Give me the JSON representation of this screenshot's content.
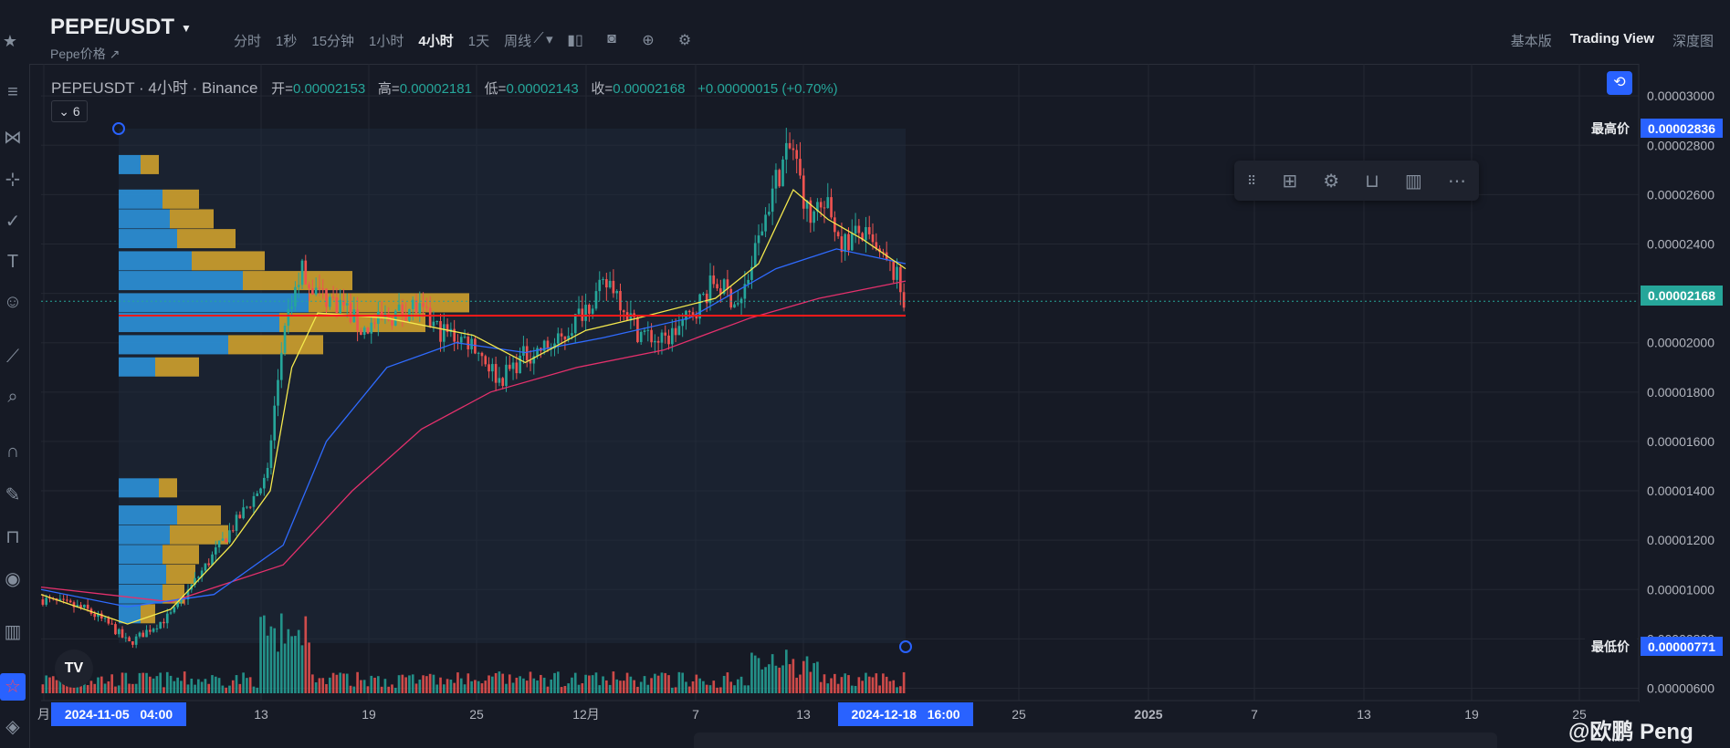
{
  "header": {
    "symbol": "PEPE/USDT",
    "sublink": "Pepe价格 ↗",
    "intervals": [
      "分时",
      "1秒",
      "15分钟",
      "1小时",
      "4小时",
      "1天",
      "周线"
    ],
    "active_interval": "4小时",
    "views": [
      "基本版",
      "Trading View",
      "深度图"
    ],
    "active_view": "Trading View"
  },
  "legend": {
    "name": "PEPEUSDT · 4小时 · Binance",
    "open_label": "开=",
    "open": "0.00002153",
    "high_label": "高=",
    "high": "0.00002181",
    "low_label": "低=",
    "low": "0.00002143",
    "close_label": "收=",
    "close": "0.00002168",
    "change": "+0.00000015 (+0.70%)",
    "indicator_toggle": "6"
  },
  "colors": {
    "background": "#161a25",
    "up": "#26a69a",
    "down": "#ef5350",
    "ma_short": "#f5e94d",
    "ma_mid": "#2f6bff",
    "ma_long": "#e4306c",
    "hline": "#ff1a1a",
    "vp_buy": "#2b8fd6",
    "vp_sell": "#d4a42c",
    "accent": "#2962ff"
  },
  "icons": {
    "top_tools": [
      "line-chart-icon",
      "candles-icon",
      "camera-icon",
      "plus-circle-icon",
      "gear-icon"
    ],
    "left_tools": [
      "menu-icon",
      "nodes-icon",
      "crosshair-icon",
      "brush-icon",
      "text-icon",
      "emoji-icon",
      "ruler-icon",
      "zoom-icon",
      "magnet-icon",
      "pen-lock-icon",
      "lock-icon",
      "eye-icon",
      "trash-icon",
      "star-icon",
      "layers-icon"
    ],
    "draw_toolbar": [
      "drag-handle-icon",
      "add-widget-icon",
      "gear-icon",
      "unlock-icon",
      "trash-icon",
      "more-icon"
    ]
  },
  "chart_data": {
    "type": "candlestick",
    "title": "PEPEUSDT · 4小时 · Binance",
    "y_axis": {
      "ticks": [
        "0.00003000",
        "0.00002800",
        "0.00002600",
        "0.00002400",
        "0.00002200",
        "0.00002000",
        "0.00001800",
        "0.00001600",
        "0.00001400",
        "0.00001200",
        "0.00001000",
        "0.00000800",
        "0.00000600"
      ],
      "ylim": [
        5.5e-06,
        3.13e-05
      ]
    },
    "x_axis": {
      "ticks": [
        "月",
        "13",
        "19",
        "25",
        "12月",
        "7",
        "13",
        "25",
        "2025",
        "7",
        "13",
        "19",
        "25"
      ],
      "crosshair_start": "2024-11-05   04:00",
      "crosshair_end": "2024-12-18   16:00"
    },
    "price_labels": {
      "high_label": "最高价",
      "high": "0.00002836",
      "low_label": "最低价",
      "low": "0.00000771",
      "last": "0.00002168"
    },
    "horizontal_line": 2.11e-05,
    "price_path": [
      [
        0,
        9.6e-06
      ],
      [
        0.05,
        9.2e-06
      ],
      [
        0.08,
        8.5e-06
      ],
      [
        0.1,
        7.8e-06
      ],
      [
        0.12,
        8.3e-06
      ],
      [
        0.15,
        9e-06
      ],
      [
        0.18,
        1.05e-05
      ],
      [
        0.21,
        1.2e-05
      ],
      [
        0.24,
        1.35e-05
      ],
      [
        0.26,
        1.45e-05
      ],
      [
        0.278,
        2e-05
      ],
      [
        0.3,
        2.3e-05
      ],
      [
        0.32,
        2.2e-05
      ],
      [
        0.35,
        2.15e-05
      ],
      [
        0.37,
        2.05e-05
      ],
      [
        0.4,
        2.1e-05
      ],
      [
        0.43,
        2.15e-05
      ],
      [
        0.46,
        2.05e-05
      ],
      [
        0.5,
        2e-05
      ],
      [
        0.53,
        1.85e-05
      ],
      [
        0.56,
        1.95e-05
      ],
      [
        0.6,
        2e-05
      ],
      [
        0.63,
        2.15e-05
      ],
      [
        0.66,
        2.25e-05
      ],
      [
        0.69,
        2.05e-05
      ],
      [
        0.72,
        2e-05
      ],
      [
        0.75,
        2.1e-05
      ],
      [
        0.78,
        2.25e-05
      ],
      [
        0.81,
        2.15e-05
      ],
      [
        0.83,
        2.4e-05
      ],
      [
        0.85,
        2.65e-05
      ],
      [
        0.87,
        2.8e-05
      ],
      [
        0.89,
        2.5e-05
      ],
      [
        0.91,
        2.55e-05
      ],
      [
        0.93,
        2.4e-05
      ],
      [
        0.95,
        2.45e-05
      ],
      [
        0.97,
        2.35e-05
      ],
      [
        0.99,
        2.28e-05
      ],
      [
        1.0,
        2.168e-05
      ]
    ],
    "ma_short": [
      [
        0,
        9.8e-06
      ],
      [
        0.1,
        8.6e-06
      ],
      [
        0.15,
        9.2e-06
      ],
      [
        0.22,
        1.18e-05
      ],
      [
        0.265,
        1.4e-05
      ],
      [
        0.29,
        1.9e-05
      ],
      [
        0.32,
        2.12e-05
      ],
      [
        0.4,
        2.1e-05
      ],
      [
        0.5,
        2.03e-05
      ],
      [
        0.56,
        1.92e-05
      ],
      [
        0.63,
        2.05e-05
      ],
      [
        0.69,
        2.1e-05
      ],
      [
        0.78,
        2.18e-05
      ],
      [
        0.83,
        2.32e-05
      ],
      [
        0.87,
        2.62e-05
      ],
      [
        0.91,
        2.5e-05
      ],
      [
        0.95,
        2.42e-05
      ],
      [
        1.0,
        2.3e-05
      ]
    ],
    "ma_mid": [
      [
        0,
        1e-05
      ],
      [
        0.1,
        9.3e-06
      ],
      [
        0.2,
        9.8e-06
      ],
      [
        0.28,
        1.18e-05
      ],
      [
        0.33,
        1.6e-05
      ],
      [
        0.4,
        1.9e-05
      ],
      [
        0.48,
        2e-05
      ],
      [
        0.56,
        1.96e-05
      ],
      [
        0.65,
        2.02e-05
      ],
      [
        0.75,
        2.1e-05
      ],
      [
        0.85,
        2.3e-05
      ],
      [
        0.92,
        2.38e-05
      ],
      [
        1.0,
        2.32e-05
      ]
    ],
    "ma_long": [
      [
        0,
        1.01e-05
      ],
      [
        0.15,
        9.5e-06
      ],
      [
        0.28,
        1.1e-05
      ],
      [
        0.36,
        1.4e-05
      ],
      [
        0.44,
        1.65e-05
      ],
      [
        0.52,
        1.8e-05
      ],
      [
        0.62,
        1.9e-05
      ],
      [
        0.72,
        1.97e-05
      ],
      [
        0.82,
        2.1e-05
      ],
      [
        0.9,
        2.18e-05
      ],
      [
        1.0,
        2.25e-05
      ]
    ],
    "volume_profile_levels": [
      {
        "price": 2.72e-05,
        "buy": 0.06,
        "sell": 0.05
      },
      {
        "price": 2.58e-05,
        "buy": 0.12,
        "sell": 0.1
      },
      {
        "price": 2.5e-05,
        "buy": 0.14,
        "sell": 0.12
      },
      {
        "price": 2.42e-05,
        "buy": 0.16,
        "sell": 0.16
      },
      {
        "price": 2.33e-05,
        "buy": 0.2,
        "sell": 0.2
      },
      {
        "price": 2.25e-05,
        "buy": 0.34,
        "sell": 0.3
      },
      {
        "price": 2.16e-05,
        "buy": 0.52,
        "sell": 0.44
      },
      {
        "price": 2.08e-05,
        "buy": 0.44,
        "sell": 0.4
      },
      {
        "price": 1.99e-05,
        "buy": 0.3,
        "sell": 0.26
      },
      {
        "price": 1.9e-05,
        "buy": 0.1,
        "sell": 0.12
      },
      {
        "price": 1.41e-05,
        "buy": 0.11,
        "sell": 0.05
      },
      {
        "price": 1.3e-05,
        "buy": 0.16,
        "sell": 0.12
      },
      {
        "price": 1.22e-05,
        "buy": 0.14,
        "sell": 0.16
      },
      {
        "price": 1.14e-05,
        "buy": 0.12,
        "sell": 0.1
      },
      {
        "price": 1.06e-05,
        "buy": 0.13,
        "sell": 0.08
      },
      {
        "price": 9.8e-06,
        "buy": 0.12,
        "sell": 0.06
      },
      {
        "price": 9e-06,
        "buy": 0.06,
        "sell": 0.04
      }
    ]
  },
  "footer": {
    "signature": "@欧鹏 Peng",
    "tv_logo": "TV"
  }
}
